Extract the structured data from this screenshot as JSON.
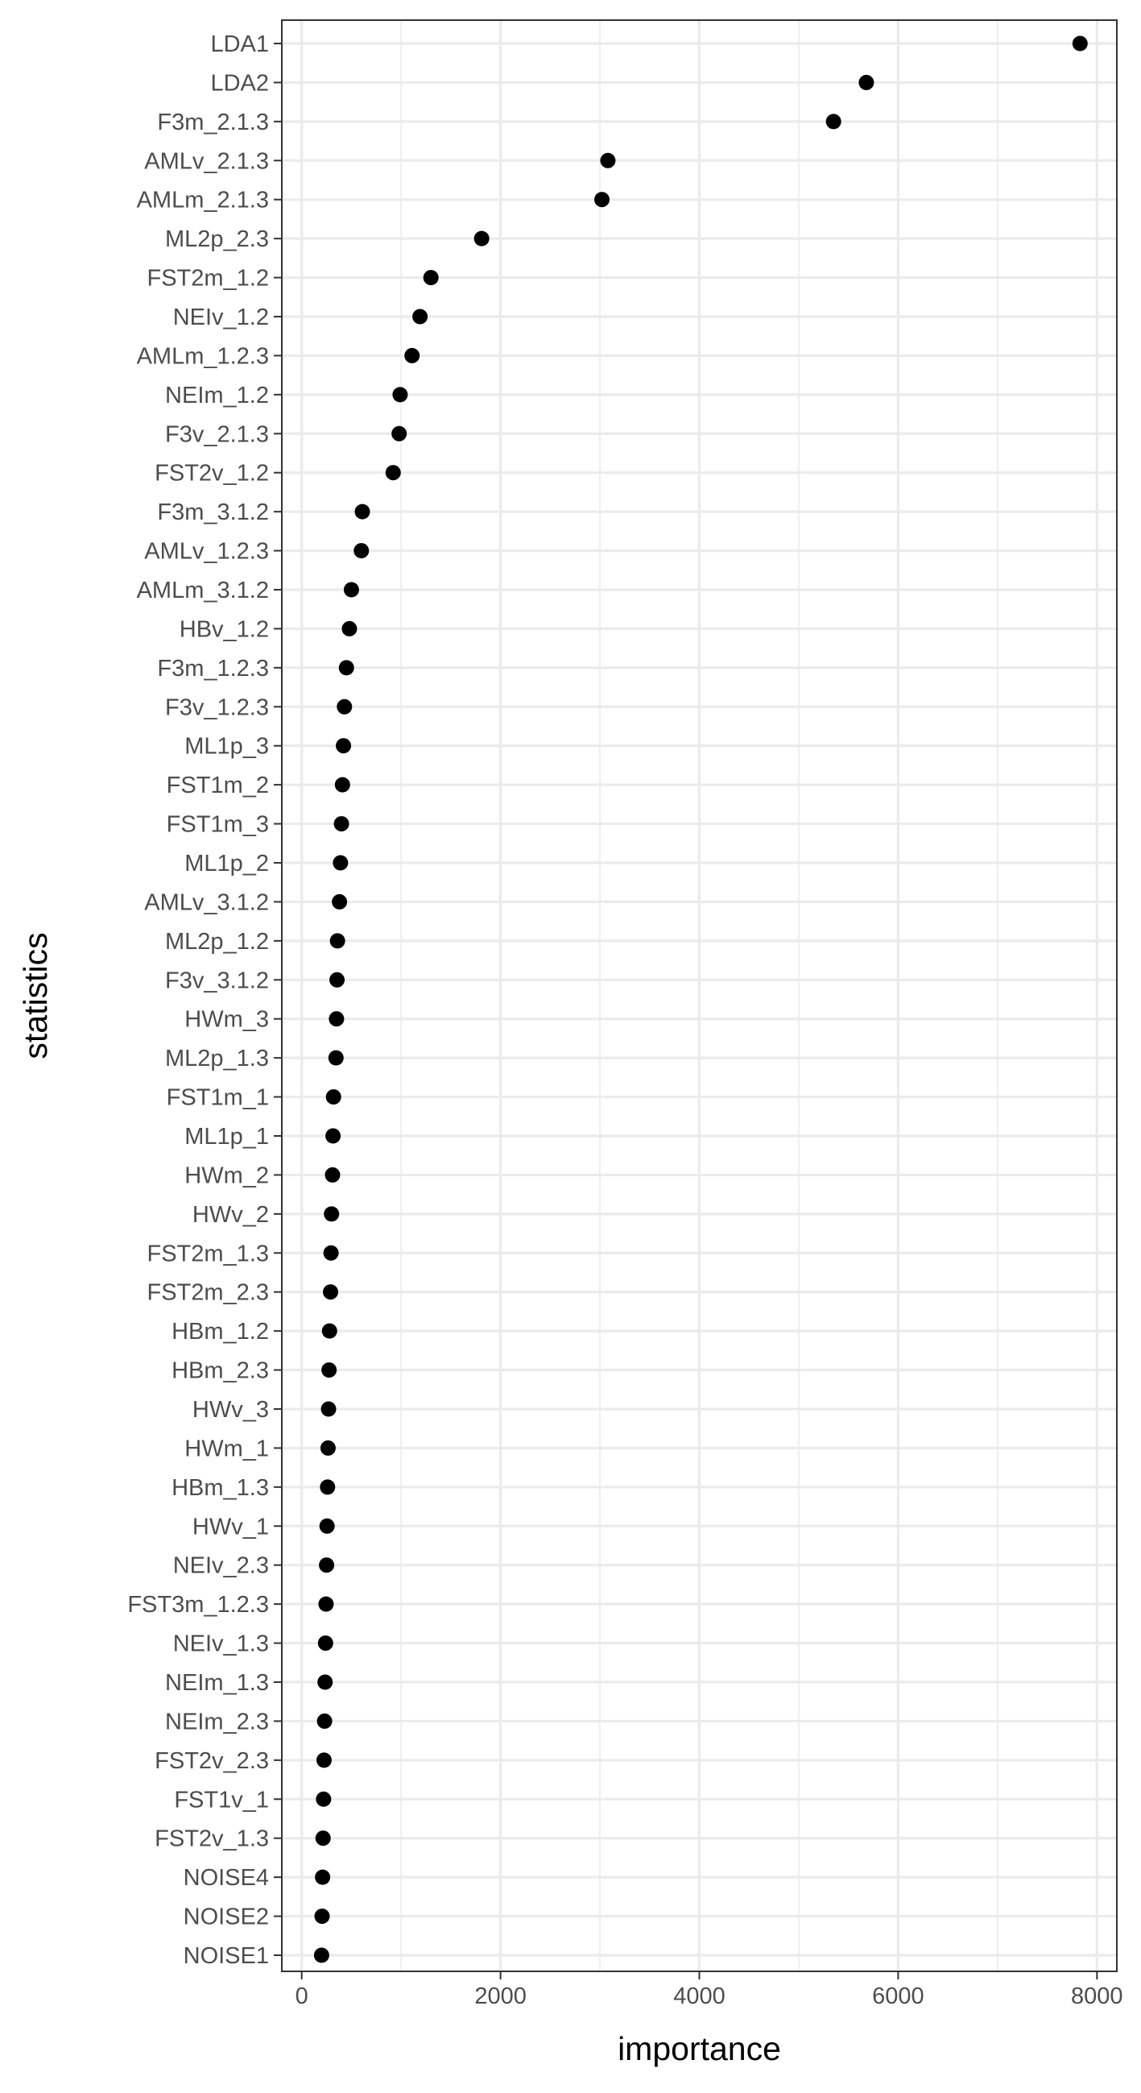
{
  "chart_data": {
    "type": "scatter",
    "xlabel": "importance",
    "ylabel": "statistics",
    "xlim": [
      -200,
      8200
    ],
    "x_ticks": [
      0,
      2000,
      4000,
      6000,
      8000
    ],
    "x_tick_labels": [
      "0",
      "2000",
      "4000",
      "6000",
      "8000"
    ],
    "grid": true,
    "theme": "bw",
    "point_color": "#000000",
    "categories": [
      "LDA1",
      "LDA2",
      "F3m_2.1.3",
      "AMLv_2.1.3",
      "AMLm_2.1.3",
      "ML2p_2.3",
      "FST2m_1.2",
      "NEIv_1.2",
      "AMLm_1.2.3",
      "NEIm_1.2",
      "F3v_2.1.3",
      "FST2v_1.2",
      "F3m_3.1.2",
      "AMLv_1.2.3",
      "AMLm_3.1.2",
      "HBv_1.2",
      "F3m_1.2.3",
      "F3v_1.2.3",
      "ML1p_3",
      "FST1m_2",
      "FST1m_3",
      "ML1p_2",
      "AMLv_3.1.2",
      "ML2p_1.2",
      "F3v_3.1.2",
      "HWm_3",
      "ML2p_1.3",
      "FST1m_1",
      "ML1p_1",
      "HWm_2",
      "HWv_2",
      "FST2m_1.3",
      "FST2m_2.3",
      "HBm_1.2",
      "HBm_2.3",
      "HWv_3",
      "HWm_1",
      "HBm_1.3",
      "HWv_1",
      "NEIv_2.3",
      "FST3m_1.2.3",
      "NEIv_1.3",
      "NEIm_1.3",
      "NEIm_2.3",
      "FST2v_2.3",
      "FST1v_1",
      "FST2v_1.3",
      "NOISE4",
      "NOISE2",
      "NOISE1"
    ],
    "values": [
      7830,
      5680,
      5350,
      3080,
      3020,
      1810,
      1300,
      1190,
      1110,
      990,
      980,
      920,
      610,
      600,
      500,
      480,
      450,
      430,
      420,
      410,
      400,
      390,
      380,
      360,
      355,
      350,
      345,
      320,
      315,
      310,
      300,
      295,
      290,
      280,
      275,
      270,
      265,
      260,
      255,
      250,
      245,
      240,
      235,
      230,
      225,
      220,
      215,
      210,
      205,
      200
    ]
  }
}
